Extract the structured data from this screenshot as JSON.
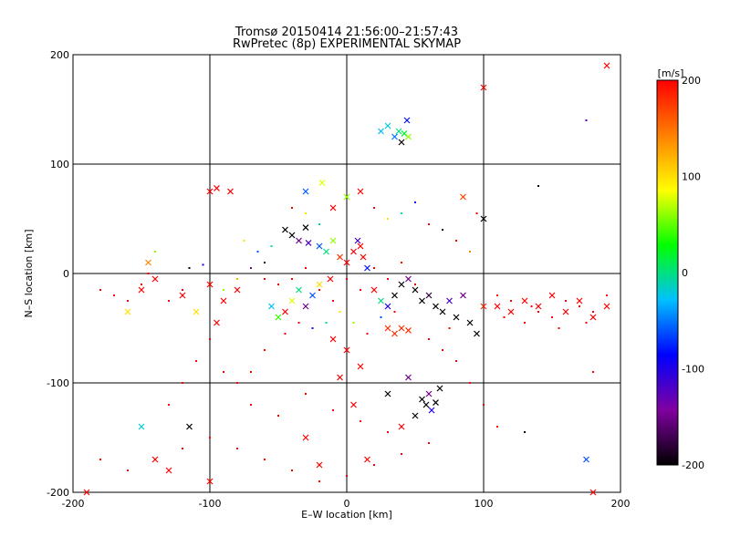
{
  "chart_data": {
    "type": "scatter",
    "title": "Tromsø 20150414 21:56:00–21:57:43",
    "subtitle": "RwPretec (8p) EXPERIMENTAL SKYMAP",
    "xlabel": "E–W location [km]",
    "ylabel": "N–S location [km]",
    "xlim": [
      -200,
      200
    ],
    "ylim": [
      -200,
      200
    ],
    "x_ticks": [
      -200,
      -100,
      0,
      100,
      200
    ],
    "y_ticks": [
      -200,
      -100,
      0,
      100,
      200
    ],
    "grid": true,
    "colorbar": {
      "label": "[m/s]",
      "range": [
        -200,
        200
      ],
      "ticks": [
        200,
        100,
        0,
        -100,
        -200
      ],
      "stops": [
        "#000000",
        "#8000a0",
        "#0000ff",
        "#00c0ff",
        "#00ff00",
        "#ffff00",
        "#ff8000",
        "#ff0000"
      ]
    },
    "series": [
      {
        "marker": "cross",
        "points": [
          [
            -45,
            40,
            -200
          ],
          [
            -40,
            35,
            -200
          ],
          [
            -35,
            30,
            -150
          ],
          [
            -30,
            42,
            -200
          ],
          [
            -28,
            28,
            -120
          ],
          [
            -20,
            25,
            -60
          ],
          [
            -15,
            20,
            0
          ],
          [
            -10,
            30,
            60
          ],
          [
            -5,
            15,
            180
          ],
          [
            0,
            10,
            200
          ],
          [
            5,
            20,
            200
          ],
          [
            8,
            30,
            -120
          ],
          [
            10,
            25,
            200
          ],
          [
            12,
            15,
            200
          ],
          [
            15,
            5,
            -80
          ],
          [
            -12,
            -5,
            200
          ],
          [
            -20,
            -10,
            100
          ],
          [
            -25,
            -20,
            -60
          ],
          [
            -30,
            -30,
            -150
          ],
          [
            -35,
            -15,
            0
          ],
          [
            -40,
            -25,
            80
          ],
          [
            -45,
            -35,
            200
          ],
          [
            -50,
            -40,
            40
          ],
          [
            -55,
            -30,
            -30
          ],
          [
            20,
            -15,
            200
          ],
          [
            25,
            -25,
            0
          ],
          [
            30,
            -30,
            -100
          ],
          [
            35,
            -20,
            -200
          ],
          [
            40,
            -10,
            -200
          ],
          [
            45,
            -5,
            -150
          ],
          [
            50,
            -15,
            -200
          ],
          [
            55,
            -25,
            -200
          ],
          [
            60,
            -20,
            -180
          ],
          [
            65,
            -30,
            -200
          ],
          [
            70,
            -35,
            -200
          ],
          [
            75,
            -25,
            -120
          ],
          [
            80,
            -40,
            -200
          ],
          [
            85,
            -20,
            -150
          ],
          [
            90,
            -45,
            -200
          ],
          [
            95,
            -55,
            -200
          ],
          [
            100,
            -30,
            180
          ],
          [
            110,
            -30,
            200
          ],
          [
            120,
            -35,
            200
          ],
          [
            130,
            -25,
            200
          ],
          [
            140,
            -30,
            200
          ],
          [
            150,
            -20,
            200
          ],
          [
            160,
            -35,
            200
          ],
          [
            170,
            -25,
            200
          ],
          [
            180,
            -40,
            200
          ],
          [
            190,
            -30,
            200
          ],
          [
            -150,
            -15,
            200
          ],
          [
            -140,
            -5,
            200
          ],
          [
            -120,
            -20,
            200
          ],
          [
            -100,
            -10,
            200
          ],
          [
            -90,
            -25,
            200
          ],
          [
            -80,
            -15,
            200
          ],
          [
            -110,
            -35,
            100
          ],
          [
            -95,
            -45,
            200
          ],
          [
            30,
            135,
            -20
          ],
          [
            35,
            125,
            -50
          ],
          [
            38,
            130,
            0
          ],
          [
            40,
            120,
            -200
          ],
          [
            42,
            128,
            20
          ],
          [
            45,
            125,
            60
          ],
          [
            25,
            130,
            -30
          ],
          [
            44,
            140,
            -80
          ],
          [
            55,
            -115,
            -200
          ],
          [
            58,
            -120,
            -200
          ],
          [
            60,
            -110,
            -150
          ],
          [
            62,
            -125,
            -100
          ],
          [
            65,
            -118,
            -200
          ],
          [
            50,
            -130,
            -200
          ],
          [
            68,
            -105,
            -200
          ],
          [
            30,
            -110,
            -200
          ],
          [
            45,
            -95,
            -150
          ],
          [
            -10,
            -60,
            200
          ],
          [
            0,
            -70,
            200
          ],
          [
            10,
            -85,
            200
          ],
          [
            -5,
            -95,
            200
          ],
          [
            5,
            -120,
            200
          ],
          [
            15,
            -170,
            200
          ],
          [
            -20,
            -175,
            200
          ],
          [
            -30,
            -150,
            200
          ],
          [
            40,
            -140,
            200
          ],
          [
            -140,
            -170,
            200
          ],
          [
            -130,
            -180,
            200
          ],
          [
            -150,
            -140,
            -20
          ],
          [
            -100,
            -190,
            200
          ],
          [
            -190,
            -200,
            200
          ],
          [
            180,
            -200,
            200
          ],
          [
            175,
            -170,
            -60
          ],
          [
            190,
            190,
            200
          ],
          [
            100,
            170,
            200
          ],
          [
            -100,
            75,
            200
          ],
          [
            -95,
            78,
            200
          ],
          [
            -85,
            75,
            200
          ],
          [
            -30,
            75,
            -60
          ],
          [
            -18,
            83,
            80
          ],
          [
            -10,
            60,
            200
          ],
          [
            0,
            70,
            60
          ],
          [
            10,
            75,
            200
          ],
          [
            85,
            70,
            170
          ],
          [
            100,
            50,
            -200
          ],
          [
            30,
            -50,
            180
          ],
          [
            35,
            -55,
            180
          ],
          [
            40,
            -50,
            180
          ],
          [
            45,
            -52,
            180
          ],
          [
            -145,
            10,
            140
          ],
          [
            -160,
            -35,
            100
          ],
          [
            -115,
            -140,
            -200
          ]
        ]
      },
      {
        "marker": "dot",
        "points": [
          [
            -60,
            -5,
            200
          ],
          [
            -50,
            -10,
            200
          ],
          [
            -40,
            -5,
            200
          ],
          [
            -30,
            5,
            200
          ],
          [
            -20,
            -15,
            200
          ],
          [
            -10,
            -25,
            200
          ],
          [
            0,
            -5,
            200
          ],
          [
            10,
            -15,
            200
          ],
          [
            20,
            5,
            200
          ],
          [
            30,
            -5,
            200
          ],
          [
            40,
            10,
            200
          ],
          [
            50,
            -10,
            200
          ],
          [
            -5,
            -35,
            100
          ],
          [
            -15,
            -45,
            0
          ],
          [
            -25,
            -50,
            -80
          ],
          [
            -35,
            -45,
            200
          ],
          [
            -45,
            -55,
            200
          ],
          [
            5,
            -45,
            60
          ],
          [
            15,
            -55,
            200
          ],
          [
            25,
            -40,
            -60
          ],
          [
            35,
            -35,
            200
          ],
          [
            110,
            -20,
            200
          ],
          [
            120,
            -25,
            200
          ],
          [
            130,
            -45,
            200
          ],
          [
            140,
            -35,
            200
          ],
          [
            150,
            -40,
            200
          ],
          [
            160,
            -25,
            200
          ],
          [
            170,
            -30,
            200
          ],
          [
            180,
            -35,
            200
          ],
          [
            190,
            -20,
            200
          ],
          [
            115,
            -40,
            200
          ],
          [
            135,
            -30,
            200
          ],
          [
            155,
            -50,
            200
          ],
          [
            175,
            -45,
            200
          ],
          [
            -180,
            -15,
            200
          ],
          [
            -170,
            -20,
            200
          ],
          [
            -160,
            -25,
            200
          ],
          [
            -150,
            -10,
            200
          ],
          [
            -130,
            -25,
            200
          ],
          [
            -120,
            -15,
            200
          ],
          [
            -180,
            -170,
            200
          ],
          [
            -160,
            -180,
            200
          ],
          [
            -120,
            -160,
            200
          ],
          [
            -100,
            -150,
            200
          ],
          [
            -80,
            -160,
            200
          ],
          [
            -60,
            -170,
            200
          ],
          [
            -40,
            -180,
            200
          ],
          [
            -20,
            -190,
            200
          ],
          [
            0,
            -185,
            200
          ],
          [
            20,
            -175,
            200
          ],
          [
            40,
            -165,
            200
          ],
          [
            60,
            -155,
            200
          ],
          [
            -70,
            -120,
            200
          ],
          [
            -50,
            -130,
            200
          ],
          [
            -30,
            -110,
            200
          ],
          [
            -10,
            -125,
            200
          ],
          [
            10,
            -135,
            200
          ],
          [
            30,
            -145,
            200
          ],
          [
            140,
            80,
            -200
          ],
          [
            130,
            -145,
            -200
          ],
          [
            175,
            140,
            -120
          ],
          [
            180,
            -90,
            200
          ],
          [
            -60,
            10,
            -200
          ],
          [
            -70,
            5,
            -150
          ],
          [
            -80,
            -5,
            120
          ],
          [
            -90,
            -15,
            60
          ],
          [
            -55,
            25,
            0
          ],
          [
            -65,
            20,
            -60
          ],
          [
            -75,
            30,
            100
          ],
          [
            -40,
            60,
            200
          ],
          [
            -30,
            55,
            100
          ],
          [
            -20,
            45,
            0
          ],
          [
            20,
            60,
            200
          ],
          [
            30,
            50,
            100
          ],
          [
            40,
            55,
            0
          ],
          [
            50,
            65,
            -100
          ],
          [
            60,
            45,
            200
          ],
          [
            70,
            40,
            -200
          ],
          [
            80,
            30,
            200
          ],
          [
            90,
            20,
            140
          ],
          [
            95,
            55,
            200
          ],
          [
            -100,
            -60,
            200
          ],
          [
            -110,
            -80,
            200
          ],
          [
            -120,
            -100,
            200
          ],
          [
            -130,
            -120,
            200
          ],
          [
            -90,
            -90,
            200
          ],
          [
            80,
            -80,
            200
          ],
          [
            90,
            -100,
            200
          ],
          [
            100,
            -120,
            200
          ],
          [
            110,
            -140,
            200
          ],
          [
            -140,
            20,
            60
          ],
          [
            -145,
            0,
            200
          ],
          [
            -115,
            5,
            -200
          ],
          [
            -105,
            8,
            -100
          ],
          [
            60,
            -60,
            200
          ],
          [
            70,
            -70,
            200
          ],
          [
            75,
            -50,
            200
          ],
          [
            -60,
            -70,
            200
          ],
          [
            -70,
            -90,
            200
          ],
          [
            -80,
            -100,
            200
          ]
        ]
      }
    ]
  }
}
